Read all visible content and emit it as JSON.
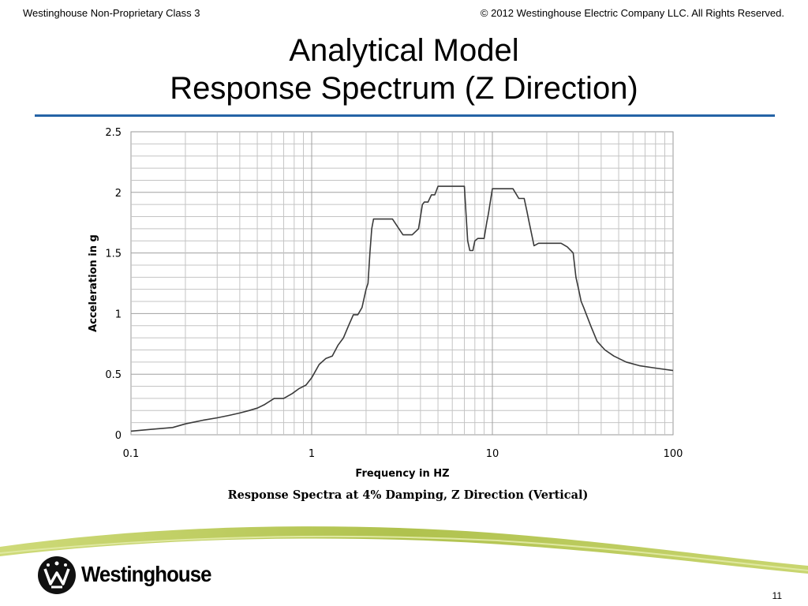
{
  "header": {
    "classification": "Westinghouse Non-Proprietary Class 3",
    "copyright": "© 2012 Westinghouse Electric Company LLC. All Rights Reserved."
  },
  "title": {
    "line1": "Analytical Model",
    "line2": "Response Spectrum (Z Direction)"
  },
  "caption": "Response Spectra at 4% Damping, Z Direction (Vertical)",
  "footer": {
    "brand": "Westinghouse",
    "page_number": "11"
  },
  "colors": {
    "rule": "#2563a6",
    "grid": "#c4c4c4",
    "curve": "#3a3a3a",
    "swoosh": "#b6c64a"
  },
  "chart_data": {
    "type": "line",
    "x_scale": "log",
    "xlim": [
      0.1,
      100
    ],
    "ylim": [
      0,
      2.5
    ],
    "xlabel": "Frequency in HZ",
    "ylabel": "Acceleration in g",
    "x_ticks": [
      "0.1",
      "1",
      "10",
      "100"
    ],
    "y_ticks": [
      "0",
      "0.5",
      "1",
      "1.5",
      "2",
      "2.5"
    ],
    "grid": true,
    "series": [
      {
        "x": [
          0.1,
          0.13,
          0.17,
          0.2,
          0.25,
          0.3,
          0.35,
          0.4,
          0.45,
          0.5,
          0.55,
          0.62,
          0.7,
          0.78,
          0.85,
          0.93,
          1.0,
          1.1,
          1.2,
          1.3,
          1.4,
          1.5,
          1.6,
          1.7,
          1.8,
          1.9,
          2.0,
          2.05,
          2.1,
          2.15,
          2.2,
          2.3,
          2.5,
          2.8,
          3.2,
          3.3,
          3.6,
          3.9,
          4.0,
          4.1,
          4.2,
          4.4,
          4.6,
          4.8,
          5.0,
          5.2,
          5.5,
          6.0,
          7.0,
          7.3,
          7.5,
          7.8,
          8.0,
          8.3,
          9.0,
          9.3,
          9.5,
          10.0,
          10.5,
          11.5,
          13.0,
          14.0,
          14.5,
          15.0,
          15.5,
          16.0,
          17.0,
          18.0,
          20.0,
          24.0,
          26.0,
          28.0,
          29.0,
          30.0,
          31.0,
          32.0,
          35.0,
          38.0,
          42.0,
          47.0,
          55.0,
          65.0,
          80.0,
          100.0
        ],
        "y": [
          0.03,
          0.045,
          0.06,
          0.09,
          0.12,
          0.14,
          0.16,
          0.18,
          0.2,
          0.22,
          0.25,
          0.3,
          0.3,
          0.34,
          0.38,
          0.41,
          0.47,
          0.58,
          0.63,
          0.65,
          0.74,
          0.8,
          0.9,
          0.99,
          0.99,
          1.05,
          1.2,
          1.25,
          1.5,
          1.7,
          1.78,
          1.78,
          1.78,
          1.78,
          1.65,
          1.65,
          1.65,
          1.7,
          1.8,
          1.9,
          1.92,
          1.92,
          1.98,
          1.98,
          2.05,
          2.05,
          2.05,
          2.05,
          2.05,
          1.6,
          1.52,
          1.52,
          1.6,
          1.62,
          1.62,
          1.75,
          1.82,
          2.03,
          2.03,
          2.03,
          2.03,
          1.95,
          1.95,
          1.95,
          1.85,
          1.75,
          1.56,
          1.58,
          1.58,
          1.58,
          1.55,
          1.5,
          1.3,
          1.2,
          1.1,
          1.05,
          0.9,
          0.77,
          0.7,
          0.65,
          0.6,
          0.57,
          0.55,
          0.53
        ]
      }
    ]
  }
}
